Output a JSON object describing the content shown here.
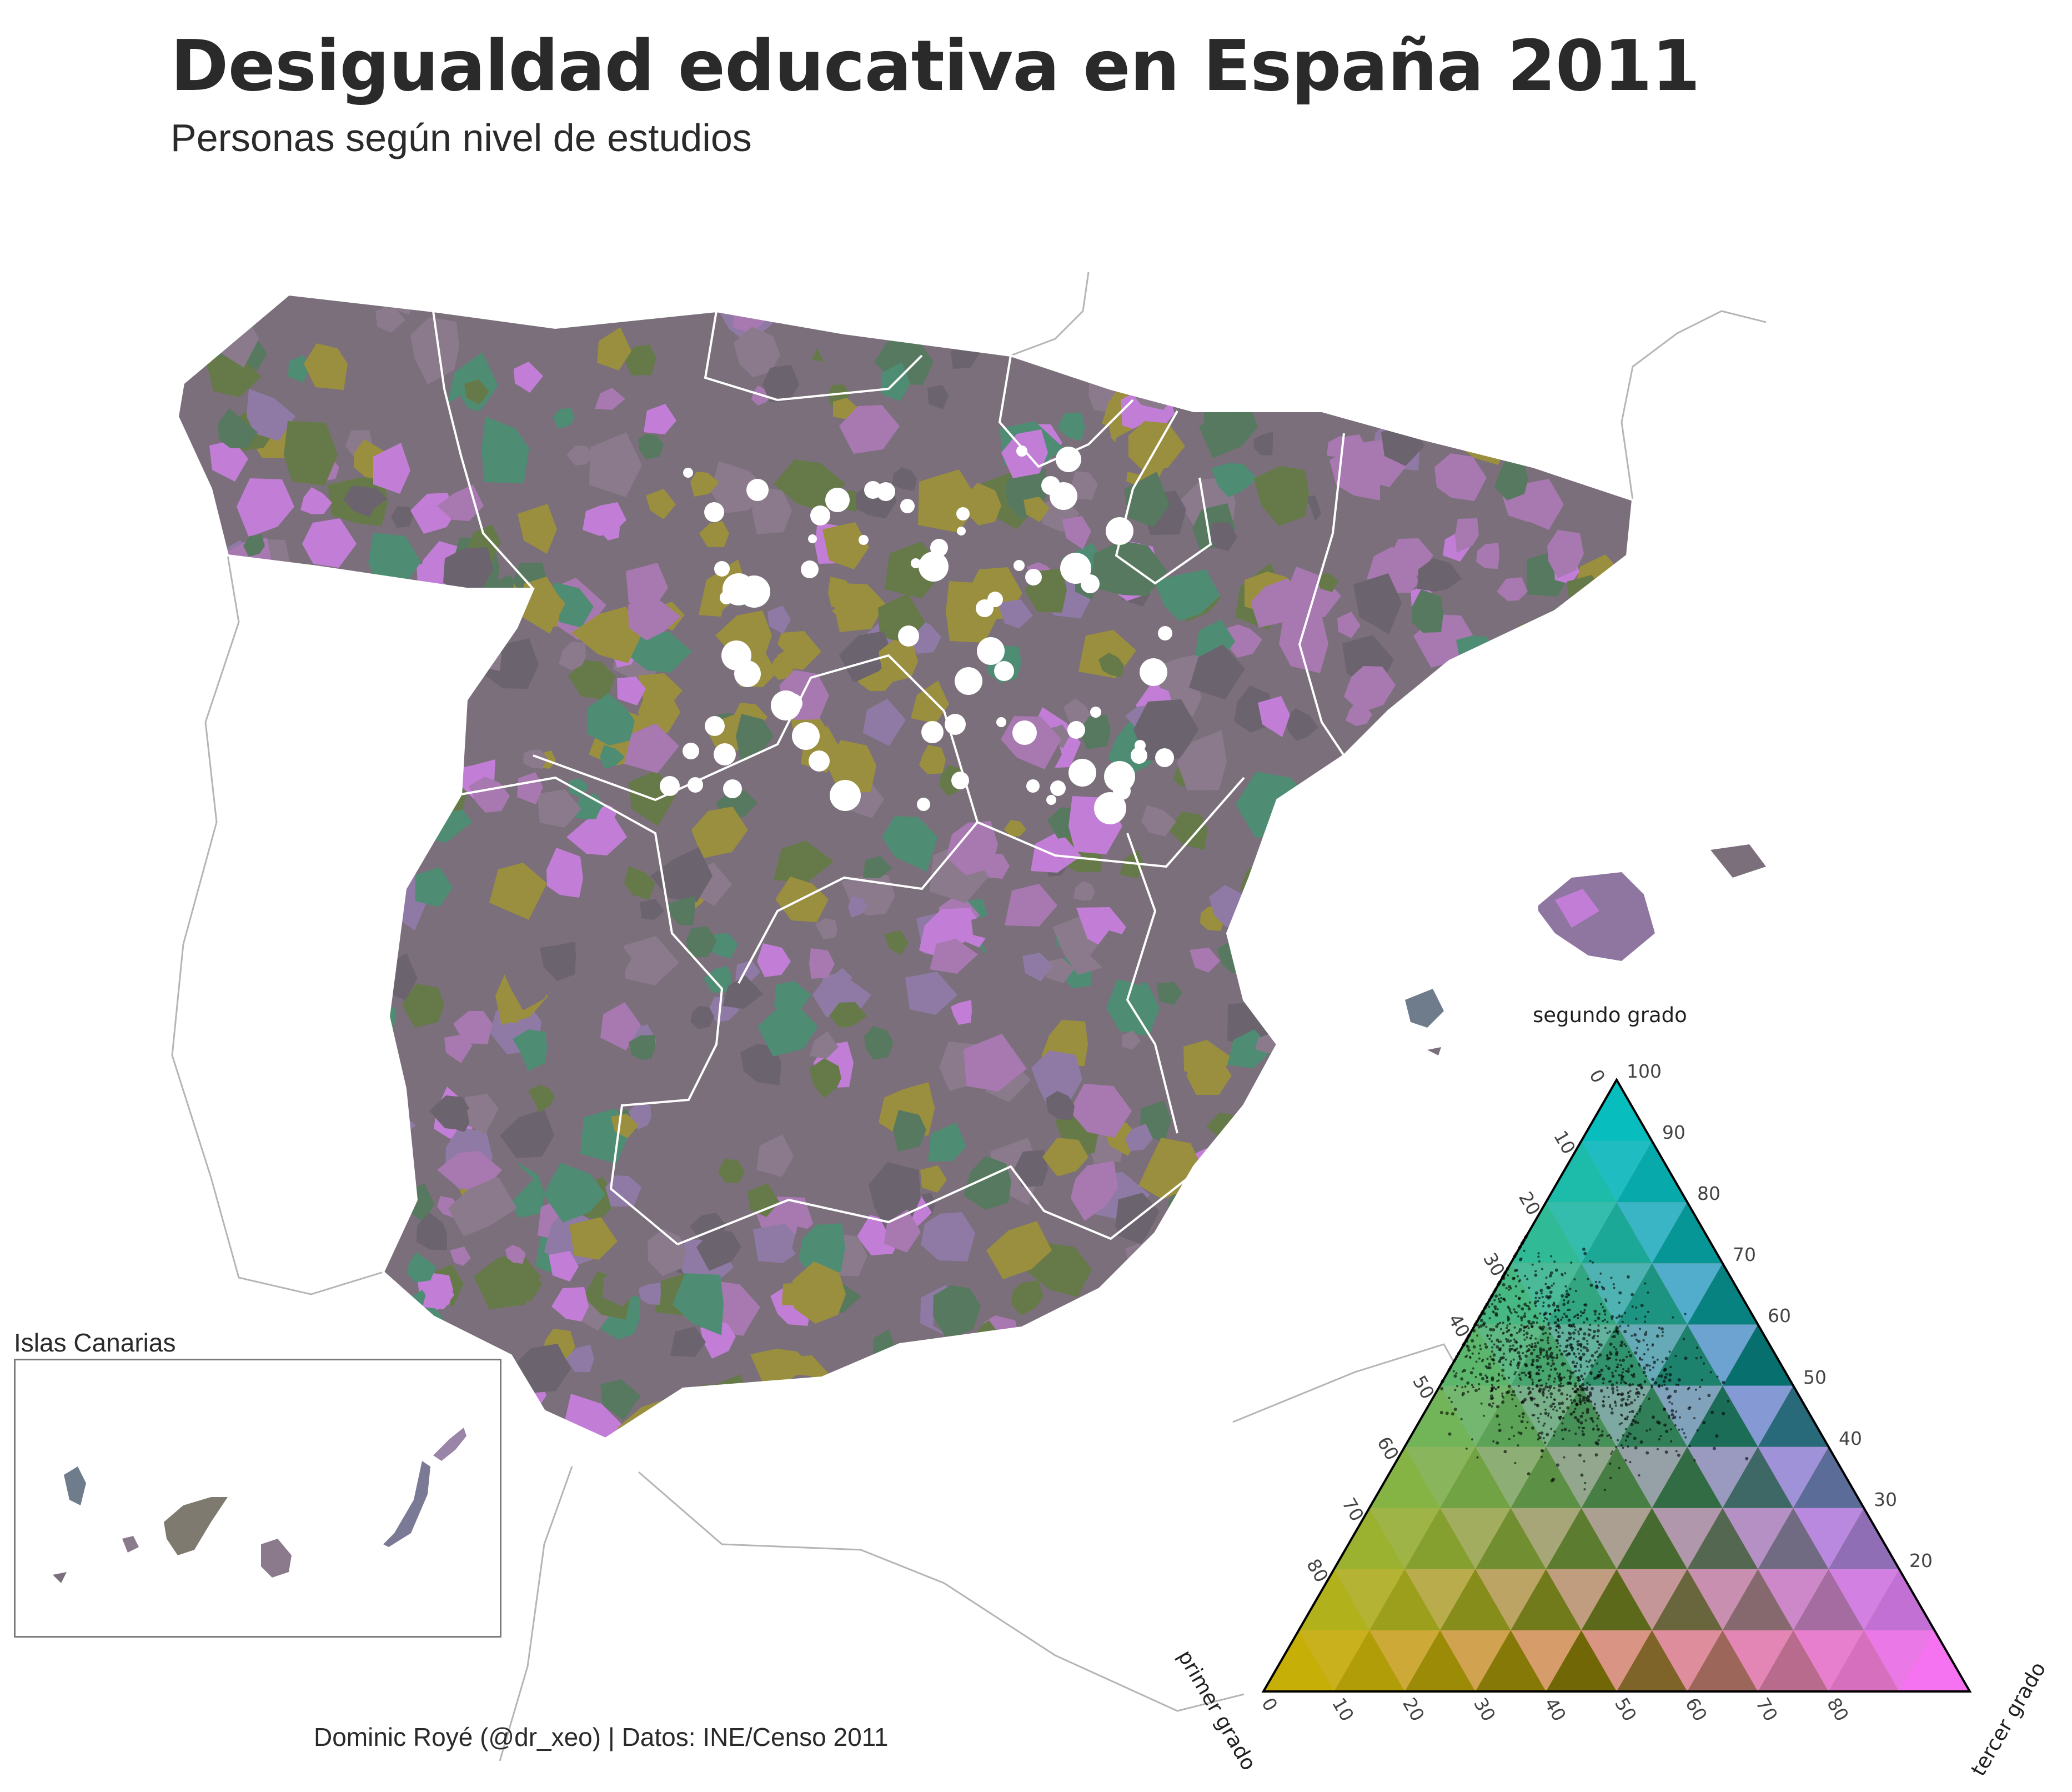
{
  "header": {
    "title": "Desigualdad educativa en España 2011",
    "subtitle": "Personas según nivel de estudios"
  },
  "caption": "Dominic Royé (@dr_xeo) | Datos: INE/Censo 2011",
  "inset": {
    "label": "Islas Canarias"
  },
  "ternary": {
    "axis_top": "segundo grado",
    "axis_left": "primer grado",
    "axis_right": "tercer grado",
    "ticks": [
      "0",
      "10",
      "20",
      "30",
      "40",
      "50",
      "60",
      "70",
      "80",
      "90",
      "100"
    ],
    "colors": {
      "primer": "#d4b500",
      "segundo": "#00c4cc",
      "tercer": "#ff6dfb"
    }
  },
  "palette": [
    "#7a6f7a",
    "#6b636d",
    "#8a7a8c",
    "#57795f",
    "#667a49",
    "#9a8f3e",
    "#a878b0",
    "#8f7aa6",
    "#c27ed6",
    "#4f8c74"
  ]
}
